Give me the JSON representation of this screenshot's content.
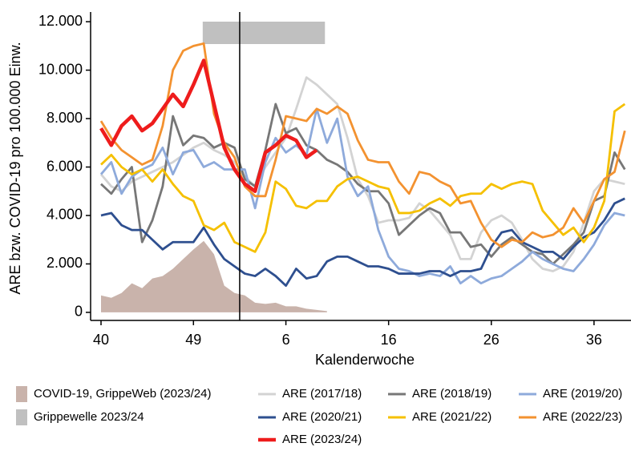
{
  "chart_data": {
    "type": "line",
    "x_label": "Kalenderwoche",
    "y_label": "ARE bzw. COVID-19 pro 100.000 Einw.",
    "categories": [
      "40",
      null,
      null,
      null,
      null,
      null,
      null,
      null,
      null,
      "49",
      null,
      null,
      null,
      null,
      null,
      null,
      null,
      null,
      "6",
      null,
      null,
      null,
      null,
      null,
      null,
      null,
      null,
      null,
      "16",
      null,
      null,
      null,
      null,
      null,
      null,
      null,
      null,
      null,
      "26",
      null,
      null,
      null,
      null,
      null,
      null,
      null,
      null,
      null,
      "36",
      null,
      null,
      null
    ],
    "ylim": [
      -300,
      12400
    ],
    "yticks": [
      0,
      {
        "value": 2000,
        "label": "2.000"
      },
      {
        "value": 4000,
        "label": "4.000"
      },
      {
        "value": 6000,
        "label": "6.000"
      },
      {
        "value": 8000,
        "label": "8.000"
      },
      {
        "value": 10000,
        "label": "10.000"
      },
      {
        "value": 12000,
        "label": "12.000"
      }
    ],
    "band": {
      "name": "Grippewelle 2023/24",
      "color": "#c0c0c0",
      "start": 9.9,
      "end": 21.8
    },
    "vline": 13.5,
    "series": [
      {
        "name": "COVID-19, GrippeWeb (2023/24)",
        "type": "area",
        "color": "#c9b3ab",
        "values": [
          700,
          600,
          800,
          1200,
          1000,
          1400,
          1500,
          1800,
          2200,
          2600,
          2950,
          2400,
          1100,
          800,
          700,
          400,
          350,
          400,
          250,
          250,
          150,
          100,
          50,
          null,
          null,
          null,
          null,
          null,
          null,
          null,
          null,
          null,
          null,
          null,
          null,
          null,
          null,
          null,
          null,
          null,
          null,
          null,
          null,
          null,
          null,
          null,
          null,
          null,
          null,
          null,
          null,
          null
        ]
      },
      {
        "name": "ARE (2017/18)",
        "color": "#d3d3d3",
        "values": [
          5700,
          5200,
          5000,
          5400,
          5600,
          5800,
          6000,
          6200,
          6500,
          6800,
          7000,
          6700,
          6500,
          6200,
          5600,
          5200,
          6000,
          6600,
          7200,
          8400,
          9700,
          9400,
          9000,
          8600,
          7200,
          5500,
          4800,
          3700,
          3800,
          3800,
          3900,
          4500,
          4200,
          3700,
          3200,
          2200,
          2200,
          3300,
          3800,
          4000,
          3700,
          3000,
          2200,
          1800,
          1700,
          1900,
          2500,
          3700,
          5000,
          5500,
          5400,
          5300
        ]
      },
      {
        "name": "ARE (2018/19)",
        "color": "#777777",
        "values": [
          5300,
          4900,
          5500,
          6000,
          2900,
          3800,
          5200,
          8100,
          6900,
          7300,
          7200,
          6800,
          7000,
          6800,
          5500,
          5200,
          6700,
          8600,
          7400,
          7600,
          6900,
          6700,
          6300,
          6100,
          5800,
          5300,
          5000,
          5000,
          4500,
          3200,
          3600,
          4000,
          4300,
          4100,
          3300,
          3300,
          2700,
          2800,
          2300,
          2800,
          3100,
          2800,
          2500,
          2400,
          2000,
          2400,
          2800,
          3300,
          4600,
          4800,
          6600,
          5900
        ]
      },
      {
        "name": "ARE (2019/20)",
        "color": "#8eaadb",
        "values": [
          5700,
          6200,
          4900,
          5600,
          5900,
          6100,
          6800,
          5700,
          6600,
          6700,
          6000,
          6200,
          5900,
          5900,
          5900,
          4300,
          6200,
          7200,
          6600,
          6900,
          6500,
          8400,
          7000,
          8000,
          5600,
          4800,
          5200,
          3400,
          2300,
          1800,
          1700,
          1500,
          1600,
          1500,
          1900,
          1200,
          1500,
          1200,
          1400,
          1500,
          1800,
          2100,
          2500,
          2200,
          2000,
          1800,
          1700,
          2200,
          2800,
          3600,
          4100,
          4000
        ]
      },
      {
        "name": "ARE (2020/21)",
        "color": "#2e4f8f",
        "values": [
          4000,
          4100,
          3600,
          3400,
          3400,
          3000,
          2600,
          2900,
          2900,
          2900,
          3500,
          2800,
          2200,
          1900,
          1600,
          1500,
          1800,
          1500,
          1100,
          1800,
          1400,
          1500,
          2100,
          2300,
          2300,
          2100,
          1900,
          1900,
          1800,
          1600,
          1600,
          1600,
          1700,
          1700,
          1500,
          1700,
          1700,
          1800,
          2700,
          3300,
          3400,
          2900,
          2700,
          2500,
          2500,
          2200,
          2700,
          3100,
          3300,
          3800,
          4500,
          4700
        ]
      },
      {
        "name": "ARE (2021/22)",
        "color": "#f5c000",
        "values": [
          6100,
          6500,
          6000,
          5700,
          5900,
          5400,
          5900,
          5300,
          4800,
          4600,
          3600,
          3400,
          3700,
          2900,
          2700,
          2500,
          3300,
          5400,
          5100,
          4400,
          4300,
          4600,
          4600,
          5200,
          5500,
          5600,
          5400,
          5200,
          5100,
          4100,
          4100,
          4200,
          4500,
          4700,
          4400,
          4800,
          4900,
          4900,
          5300,
          5100,
          5300,
          5400,
          5300,
          4200,
          3700,
          3200,
          3500,
          2900,
          3500,
          4600,
          8300,
          8600
        ]
      },
      {
        "name": "ARE (2022/23)",
        "color": "#f39230",
        "values": [
          7900,
          7200,
          6700,
          6400,
          6100,
          6300,
          7700,
          10000,
          10800,
          11000,
          11100,
          8200,
          7000,
          6400,
          5200,
          4800,
          4800,
          6300,
          8100,
          8000,
          7900,
          8400,
          8200,
          8500,
          8200,
          7100,
          6300,
          6200,
          6200,
          5400,
          4900,
          5800,
          5700,
          5400,
          5200,
          4500,
          4600,
          3700,
          3000,
          2700,
          3000,
          2900,
          3300,
          3100,
          3200,
          3500,
          4300,
          3700,
          4600,
          5500,
          5800,
          7500
        ]
      },
      {
        "name": "ARE (2023/24)",
        "color": "#ee1c1c",
        "values": [
          7600,
          6900,
          7700,
          8100,
          7500,
          7800,
          8400,
          9000,
          8500,
          9400,
          10400,
          8600,
          6800,
          5900,
          5300,
          5000,
          6600,
          6900,
          7300,
          7100,
          6400,
          6700,
          null,
          null,
          null,
          null,
          null,
          null,
          null,
          null,
          null,
          null,
          null,
          null,
          null,
          null,
          null,
          null,
          null,
          null,
          null,
          null,
          null,
          null,
          null,
          null,
          null,
          null,
          null,
          null,
          null,
          null
        ]
      }
    ]
  }
}
